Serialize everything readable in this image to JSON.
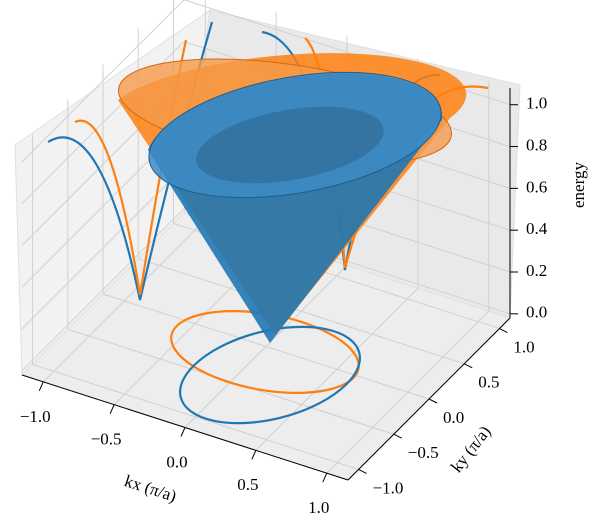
{
  "chart_data": {
    "type": "surface3d",
    "xlabel": "kx (π/a)",
    "ylabel": "ky (π/a)",
    "zlabel": "energy",
    "xlim": [
      -1.15,
      1.15
    ],
    "ylim": [
      -1.15,
      1.15
    ],
    "zlim": [
      -0.02,
      1.08
    ],
    "xticks": [
      {
        "value": -1,
        "label": "−1.0"
      },
      {
        "value": -0.5,
        "label": "−0.5"
      },
      {
        "value": 0,
        "label": "0.0"
      },
      {
        "value": 0.5,
        "label": "0.5"
      },
      {
        "value": 1,
        "label": "1.0"
      }
    ],
    "yticks": [
      {
        "value": -1,
        "label": "−1.0"
      },
      {
        "value": -0.5,
        "label": "−0.5"
      },
      {
        "value": 0,
        "label": "0.0"
      },
      {
        "value": 0.5,
        "label": "0.5"
      },
      {
        "value": 1,
        "label": "1.0"
      }
    ],
    "zticks": [
      {
        "value": 0,
        "label": "0.0"
      },
      {
        "value": 0.2,
        "label": "0.2"
      },
      {
        "value": 0.4,
        "label": "0.4"
      },
      {
        "value": 0.6,
        "label": "0.6"
      },
      {
        "value": 0.8,
        "label": "0.8"
      },
      {
        "value": 1,
        "label": "1.0"
      }
    ],
    "grid": true
  }
}
